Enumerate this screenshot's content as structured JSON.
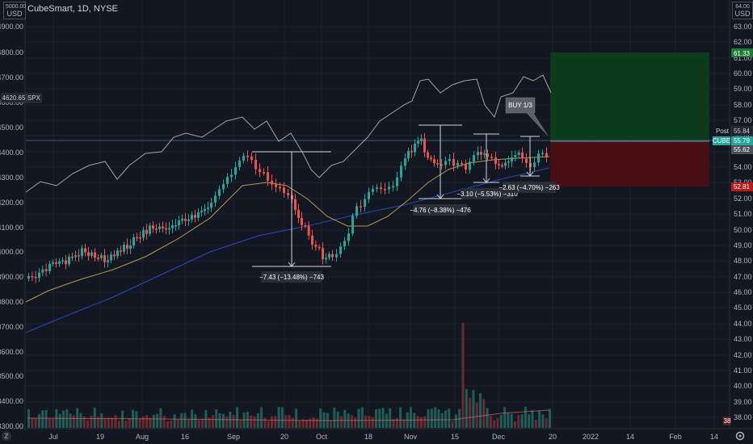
{
  "header": {
    "symbol_title": "CubeSmart, 1D, NYSE",
    "left_unit": "USD",
    "right_unit": "USD",
    "left_top_tick": "5000.00",
    "right_top_tick": "64.00"
  },
  "left_axis": {
    "ticks": [
      "4900.00",
      "4800.00",
      "4700.00",
      "4600.00",
      "4500.00",
      "4400.00",
      "4300.00",
      "4200.00",
      "4100.00",
      "4000.00",
      "3900.00",
      "3800.00",
      "3700.00",
      "3600.00",
      "3500.00",
      "3400.00",
      "3300.00"
    ],
    "spx_value": "4620.65",
    "spx_label": "SPX"
  },
  "right_axis": {
    "ticks": [
      "63.00",
      "62.00",
      "61.00",
      "60.00",
      "59.00",
      "58.00",
      "57.00",
      "56.00",
      "55.00",
      "54.00",
      "53.00",
      "52.00",
      "51.00",
      "50.00",
      "49.00",
      "48.00",
      "47.00",
      "46.00",
      "45.00",
      "44.00",
      "43.00",
      "42.00",
      "41.00",
      "40.00",
      "39.00",
      "38.00"
    ],
    "target_tag": "61.33",
    "post_label": "Post",
    "post_value": "55.84",
    "cube_label": "CUBE",
    "cube_value": "55.79",
    "gray_tag": "55.62",
    "stop_tag": "52.81",
    "bottom_tag": "38"
  },
  "x_axis": {
    "labels": [
      "Jul",
      "19",
      "Aug",
      "16",
      "Sep",
      "20",
      "Oct",
      "18",
      "Nov",
      "15",
      "Dec",
      "20",
      "2022",
      "14",
      "Feb",
      "14"
    ]
  },
  "annotations": {
    "measure_sep": "−7.43 (−13.48%) −743",
    "measure_nov": "−4.76 (−8.38%) −476",
    "measure_mid": "−3.10 (−5.53%) −310",
    "measure_dec": "−2.63 (−4.70%) −263",
    "buy_label": "BUY 1/3"
  },
  "colors": {
    "up": "#26a69a",
    "down": "#ef5350",
    "spx_line": "#c8c9cc",
    "ma_short": "#b59a4a",
    "ma_long": "#2962ff",
    "target_zone": "#0b3d1a",
    "stop_zone": "#4a0f14"
  },
  "icons": {
    "left_corner": "tradingview-z-icon",
    "right_corner": "settings-icon"
  }
}
